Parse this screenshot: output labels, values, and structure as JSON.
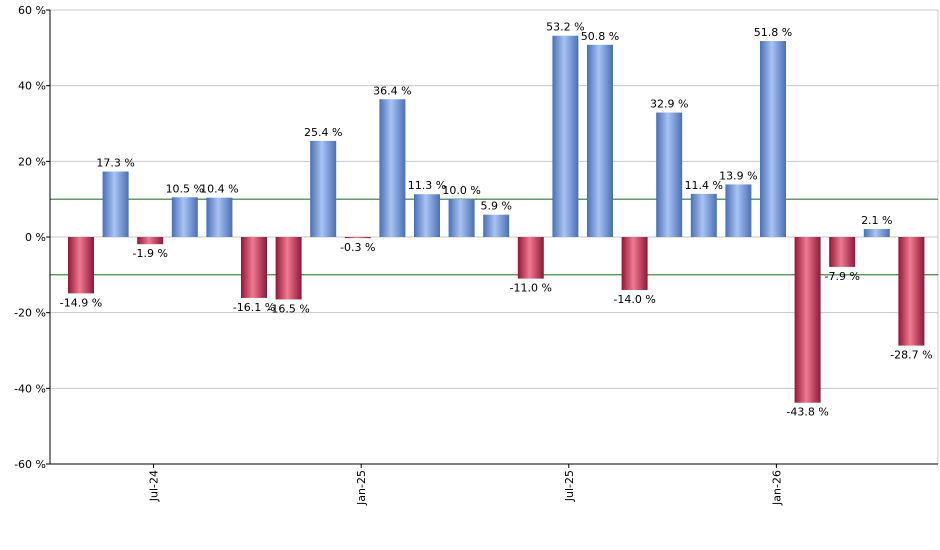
{
  "chart_data": {
    "type": "bar",
    "title": "",
    "xlabel": "",
    "ylabel": "",
    "ylim": [
      -60,
      60
    ],
    "yticks": [
      -60,
      -40,
      -20,
      0,
      20,
      40,
      60
    ],
    "ytick_labels": [
      "-60 %",
      "-40 %",
      "-20 %",
      "0 %",
      "20 %",
      "40 %",
      "60 %"
    ],
    "reference_lines": [
      10,
      -10
    ],
    "grid": true,
    "legend": "none",
    "values": [
      -14.9,
      17.3,
      -1.9,
      10.5,
      10.4,
      -16.1,
      -16.5,
      25.4,
      -0.3,
      36.4,
      11.3,
      10.0,
      5.9,
      -11.0,
      53.2,
      50.8,
      -14.0,
      32.9,
      11.4,
      13.9,
      51.8,
      -43.8,
      -7.9,
      2.1,
      -28.7
    ],
    "value_labels": [
      "-14.9 %",
      "17.3 %",
      "-1.9 %",
      "10.5 %",
      "10.4 %",
      "-16.1 %",
      "-16.5 %",
      "25.4 %",
      "-0.3 %",
      "36.4 %",
      "11.3 %",
      "10.0 %",
      "5.9 %",
      "-11.0 %",
      "53.2 %",
      "50.8 %",
      "-14.0 %",
      "32.9 %",
      "11.4 %",
      "13.9 %",
      "51.8 %",
      "-43.8 %",
      "-7.9 %",
      "2.1 %",
      "-28.7 %"
    ],
    "x_tick_labels": [
      {
        "label": "Jul-24",
        "bar_index": 1
      },
      {
        "label": "Jan-25",
        "bar_index": 7
      },
      {
        "label": "Jul-25",
        "bar_index": 13
      },
      {
        "label": "Jan-26",
        "bar_index": 19
      }
    ],
    "colors": {
      "positive_light": "#a9c3f2",
      "positive_dark": "#4a6fb5",
      "negative_light": "#f07a92",
      "negative_dark": "#8e1836",
      "reference_line": "#2e7d32",
      "grid": "#c8c8c8",
      "axis": "#000000"
    }
  }
}
